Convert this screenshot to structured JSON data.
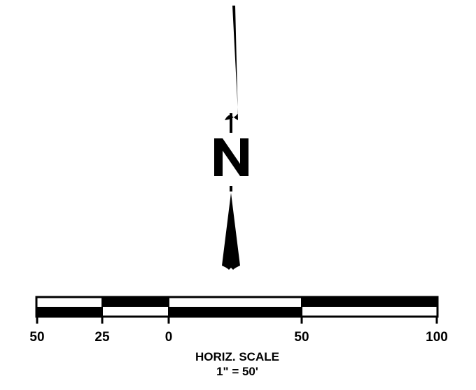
{
  "north_arrow": {
    "letter": "N",
    "color": "#000000"
  },
  "scale_bar": {
    "ticks": [
      "50",
      "25",
      "0",
      "50",
      "100"
    ],
    "title": "HORIZ. SCALE",
    "ratio": "1\" = 50'",
    "colors": {
      "dark": "#000000",
      "light": "#ffffff"
    }
  }
}
